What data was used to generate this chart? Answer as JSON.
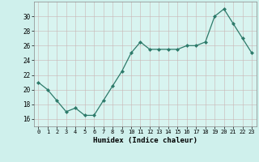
{
  "x": [
    0,
    1,
    2,
    3,
    4,
    5,
    6,
    7,
    8,
    9,
    10,
    11,
    12,
    13,
    14,
    15,
    16,
    17,
    18,
    19,
    20,
    21,
    22,
    23
  ],
  "y": [
    21,
    20,
    18.5,
    17,
    17.5,
    16.5,
    16.5,
    18.5,
    20.5,
    22.5,
    25,
    26.5,
    25.5,
    25.5,
    25.5,
    25.5,
    26,
    26,
    26.5,
    30,
    31,
    29,
    27,
    25
  ],
  "xlabel": "Humidex (Indice chaleur)",
  "xlim": [
    -0.5,
    23.5
  ],
  "ylim": [
    15,
    32
  ],
  "yticks": [
    16,
    18,
    20,
    22,
    24,
    26,
    28,
    30
  ],
  "xticks": [
    0,
    1,
    2,
    3,
    4,
    5,
    6,
    7,
    8,
    9,
    10,
    11,
    12,
    13,
    14,
    15,
    16,
    17,
    18,
    19,
    20,
    21,
    22,
    23
  ],
  "line_color": "#2d7a6a",
  "bg_color": "#cff0ec",
  "plot_bg": "#d8f4f0",
  "grid_color_v": "#c8b4b4",
  "grid_color_h": "#c8b4b4"
}
